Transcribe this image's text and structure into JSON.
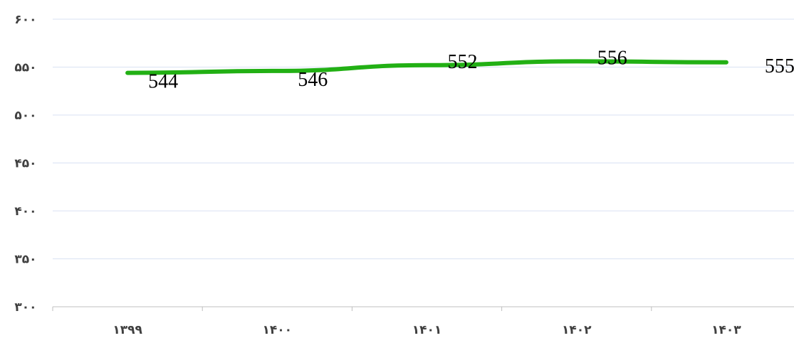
{
  "chart_data": {
    "type": "line",
    "title": "",
    "xlabel": "",
    "ylabel": "",
    "categories": [
      "۱۳۹۹",
      "۱۴۰۰",
      "۱۴۰۱",
      "۱۴۰۲",
      "۱۴۰۳"
    ],
    "series": [
      {
        "values": [
          544,
          546,
          552,
          556,
          555
        ],
        "color": "#22b014"
      }
    ],
    "data_labels": [
      "544",
      "546",
      "552",
      "556",
      "555"
    ],
    "ylim": [
      300,
      600
    ],
    "y_ticks": [
      300,
      350,
      400,
      450,
      500,
      550,
      600
    ],
    "y_tick_labels": [
      "۳۰۰",
      "۳۵۰",
      "۴۰۰",
      "۴۵۰",
      "۵۰۰",
      "۵۵۰",
      "۶۰۰"
    ],
    "grid": true,
    "legend": "none"
  }
}
